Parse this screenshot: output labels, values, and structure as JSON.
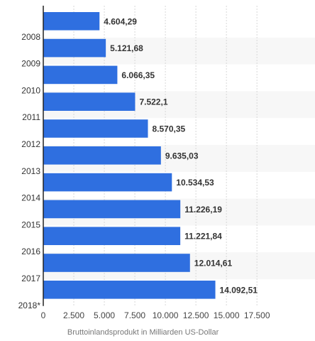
{
  "chart_data": {
    "type": "bar",
    "orientation": "horizontal",
    "categories": [
      "2008",
      "2009",
      "2010",
      "2011",
      "2012",
      "2013",
      "2014",
      "2015",
      "2016",
      "2017",
      "2018*"
    ],
    "values": [
      4604.29,
      5121.68,
      6066.35,
      7522.1,
      8570.35,
      9635.03,
      10534.53,
      11226.19,
      11221.84,
      12014.61,
      14092.51
    ],
    "value_labels": [
      "4.604,29",
      "5.121,68",
      "6.066,35",
      "7.522,1",
      "8.570,35",
      "9.635,03",
      "10.534,53",
      "11.226,19",
      "11.221,84",
      "12.014,61",
      "14.092,51"
    ],
    "xlabel": "Bruttoinlandsprodukt in Milliarden US-Dollar",
    "ylabel": "",
    "xlim": [
      0,
      17500
    ],
    "x_ticks": [
      0,
      2500,
      5000,
      7500,
      10000,
      12500,
      15000,
      17500
    ],
    "x_tick_labels": [
      "0",
      "2.500",
      "5.000",
      "7.500",
      "10.000",
      "12.500",
      "15.000",
      "17.500"
    ],
    "grid": true,
    "colors": {
      "bar": "#2f6fe0",
      "band": "#f7f7f7",
      "grid": "#d8d8d8",
      "axis": "#222222"
    }
  }
}
